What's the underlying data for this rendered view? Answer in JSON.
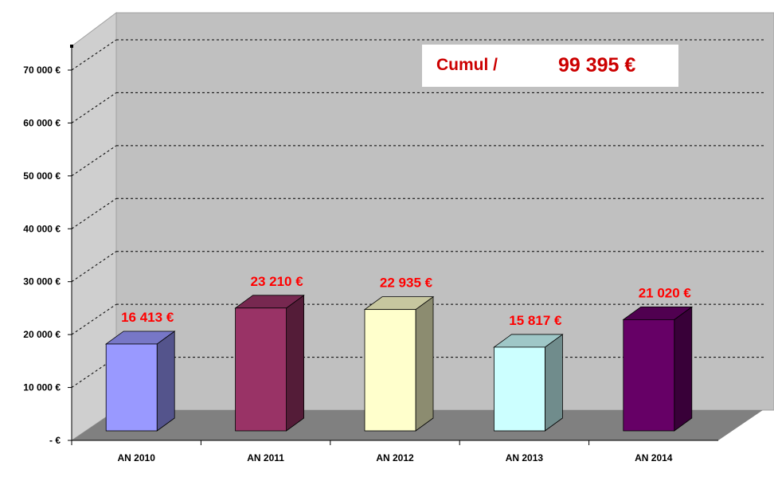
{
  "chart_data": {
    "type": "bar",
    "title": "",
    "xlabel": "",
    "ylabel": "",
    "categories": [
      "AN 2010",
      "AN 2011",
      "AN 2012",
      "AN 2013",
      "AN 2014"
    ],
    "values": [
      16413,
      23210,
      22935,
      15817,
      21020
    ],
    "value_labels": [
      "16 413 €",
      "23 210 €",
      "22 935 €",
      "15 817 €",
      "21 020 €"
    ],
    "bar_colors": [
      "#9999ff",
      "#993366",
      "#ffffcc",
      "#ccffff",
      "#660066"
    ],
    "ylim": [
      0,
      70000
    ],
    "y_ticks": [
      0,
      10000,
      20000,
      30000,
      40000,
      50000,
      60000,
      70000
    ],
    "y_tick_labels": [
      "-   €",
      "10 000 €",
      "20 000 €",
      "30 000 €",
      "40 000 €",
      "50 000 €",
      "60 000 €",
      "70 000 €"
    ],
    "grid": true,
    "style": "3d-column",
    "annotation": {
      "label": "Cumul /",
      "value": "99 395 €"
    },
    "colors": {
      "wall": "#c0c0c0",
      "floor": "#808080",
      "data_label": "#ff0000",
      "annotation_text": "#cc0000"
    }
  }
}
